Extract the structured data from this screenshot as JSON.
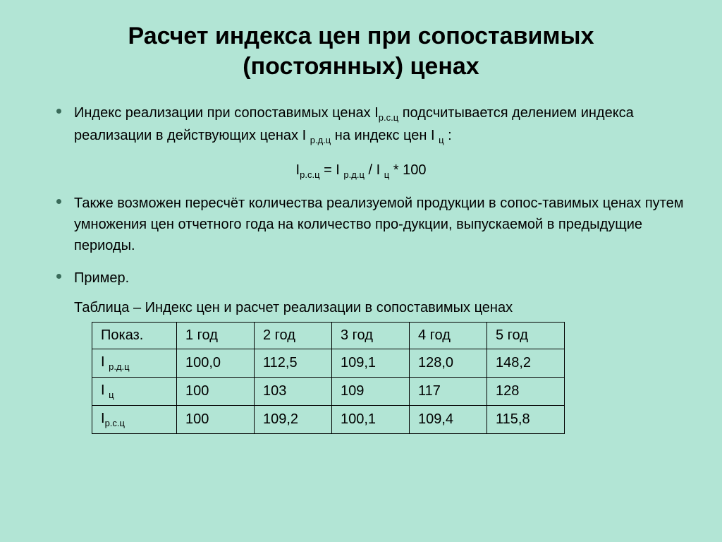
{
  "title_line1": "Расчет  индекса цен при сопоставимых",
  "title_line2": "(постоянных) ценах",
  "bullet1_part1": "Индекс реализации при сопоставимых ценах I",
  "bullet1_sub1": "р.с.ц",
  "bullet1_part2": " подсчитывается делением индекса реализации в действующих ценах  I ",
  "bullet1_sub2": "р.д.ц",
  "bullet1_part3": " на индекс цен  I ",
  "bullet1_sub3": "ц",
  "bullet1_part4": " :",
  "formula_p1": "I",
  "formula_s1": "р.с.ц",
  "formula_p2": " = I ",
  "formula_s2": "р.д.ц",
  "formula_p3": " / I ",
  "formula_s3": "ц",
  "formula_p4": " * 100",
  "bullet2": "Также возможен пересчёт количества реализуемой продукции в сопос-тавимых ценах путем умножения цен отчетного года на количество про-дукции, выпускаемой в предыдущие периоды.",
  "bullet3": " Пример.",
  "table_caption": "Таблица – Индекс цен и расчет реализации в сопоставимых ценах",
  "table": {
    "header": [
      "Показ.",
      "1 год",
      "2 год",
      "3 год",
      "4 год",
      "5 год"
    ],
    "row1_label_p1": "I ",
    "row1_label_s": "р.д.ц",
    "row1": [
      "100,0",
      "112,5",
      "109,1",
      "128,0",
      "148,2"
    ],
    "row2_label_p1": "I ",
    "row2_label_s": "ц",
    "row2": [
      "100",
      "103",
      "109",
      "117",
      "128"
    ],
    "row3_label_p1": "I",
    "row3_label_s": "р.с.ц",
    "row3": [
      "100",
      "109,2",
      "100,1",
      "109,4",
      "115,8"
    ]
  }
}
